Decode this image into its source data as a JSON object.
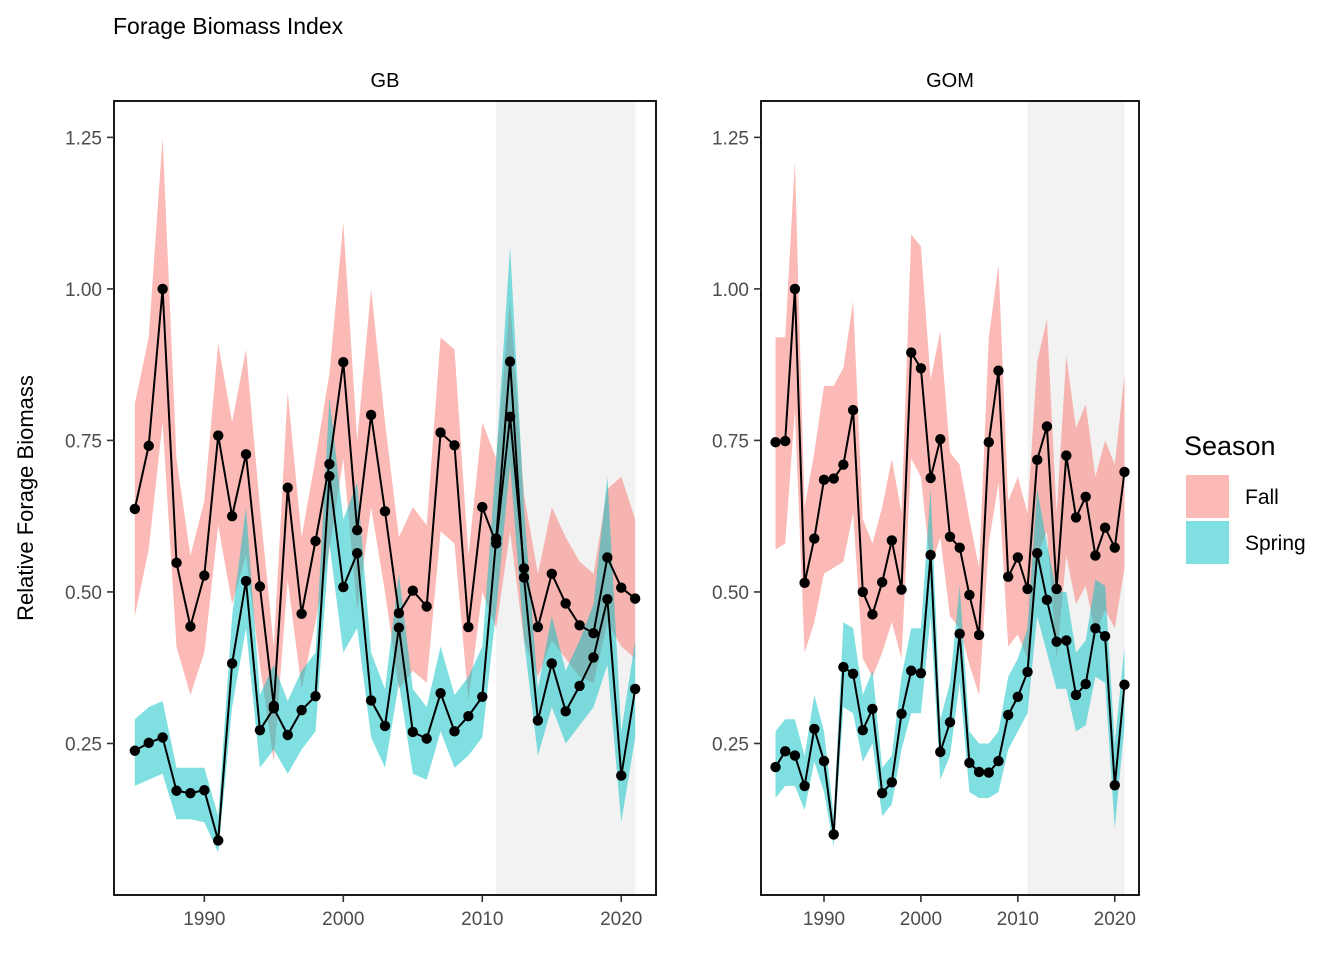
{
  "chart_data": {
    "type": "line",
    "title": "Forage Biomass Index",
    "ylabel": "Relative Forage Biomass",
    "xlabel": "",
    "legend": {
      "title": "Season",
      "placement": "right",
      "items": [
        {
          "name": "Fall",
          "color": "#f8766d"
        },
        {
          "name": "Spring",
          "color": "#00bfc4"
        }
      ]
    },
    "shaded_period": [
      2011,
      2021
    ],
    "panels": [
      {
        "name": "GB",
        "xlim": [
          1983.5,
          2022.5
        ],
        "ylim": [
          0.0,
          1.31
        ],
        "xticks": [
          1990,
          2000,
          2010,
          2020
        ],
        "yticks": [
          0.25,
          0.5,
          0.75,
          1.0,
          1.25
        ],
        "ytick_labels": [
          "0.25",
          "0.50",
          "0.75",
          "1.00",
          "1.25"
        ],
        "series": [
          {
            "name": "Fall",
            "x": [
              1985,
              1986,
              1987,
              1988,
              1989,
              1990,
              1991,
              1992,
              1993,
              1994,
              1995,
              1996,
              1997,
              1998,
              1999,
              2000,
              2001,
              2002,
              2003,
              2004,
              2005,
              2006,
              2007,
              2008,
              2009,
              2010,
              2011,
              2012,
              2013,
              2014,
              2015,
              2016,
              2017,
              2018,
              2019,
              2020,
              2021
            ],
            "y": [
              0.637,
              0.741,
              1.0,
              0.548,
              0.443,
              0.527,
              0.758,
              0.625,
              0.727,
              0.509,
              0.312,
              0.672,
              0.464,
              0.584,
              0.711,
              0.879,
              0.602,
              0.792,
              0.633,
              0.465,
              0.502,
              0.476,
              0.763,
              0.742,
              0.442,
              0.64,
              0.58,
              0.789,
              0.539,
              0.442,
              0.53,
              0.481,
              0.445,
              0.432,
              0.557,
              0.507,
              0.489
            ],
            "lower": [
              0.46,
              0.57,
              0.78,
              0.41,
              0.33,
              0.4,
              0.61,
              0.48,
              0.56,
              0.38,
              0.22,
              0.52,
              0.34,
              0.45,
              0.57,
              0.72,
              0.47,
              0.64,
              0.5,
              0.34,
              0.37,
              0.35,
              0.6,
              0.58,
              0.32,
              0.5,
              0.44,
              0.6,
              0.42,
              0.36,
              0.42,
              0.39,
              0.36,
              0.35,
              0.45,
              0.41,
              0.39
            ],
            "upper": [
              0.81,
              0.92,
              1.25,
              0.72,
              0.56,
              0.65,
              0.91,
              0.78,
              0.9,
              0.64,
              0.41,
              0.83,
              0.59,
              0.72,
              0.86,
              1.11,
              0.75,
              1.0,
              0.78,
              0.59,
              0.64,
              0.61,
              0.92,
              0.9,
              0.56,
              0.78,
              0.72,
              0.98,
              0.66,
              0.53,
              0.64,
              0.59,
              0.55,
              0.53,
              0.67,
              0.69,
              0.62
            ]
          },
          {
            "name": "Spring",
            "x": [
              1985,
              1986,
              1987,
              1988,
              1989,
              1990,
              1991,
              1992,
              1993,
              1994,
              1995,
              1996,
              1997,
              1998,
              1999,
              2000,
              2001,
              2002,
              2003,
              2004,
              2005,
              2006,
              2007,
              2008,
              2009,
              2010,
              2011,
              2012,
              2013,
              2014,
              2015,
              2016,
              2017,
              2018,
              2019,
              2020,
              2021
            ],
            "y": [
              0.238,
              0.251,
              0.26,
              0.172,
              0.168,
              0.173,
              0.09,
              0.382,
              0.518,
              0.272,
              0.308,
              0.264,
              0.305,
              0.328,
              0.691,
              0.508,
              0.564,
              0.321,
              0.279,
              0.441,
              0.269,
              0.258,
              0.333,
              0.27,
              0.295,
              0.327,
              0.588,
              0.88,
              0.524,
              0.288,
              0.382,
              0.303,
              0.345,
              0.392,
              0.488,
              0.197,
              0.34
            ],
            "lower": [
              0.18,
              0.19,
              0.2,
              0.125,
              0.125,
              0.12,
              0.07,
              0.31,
              0.44,
              0.21,
              0.24,
              0.2,
              0.24,
              0.27,
              0.58,
              0.4,
              0.44,
              0.26,
              0.21,
              0.35,
              0.2,
              0.19,
              0.27,
              0.21,
              0.23,
              0.26,
              0.47,
              0.71,
              0.42,
              0.23,
              0.31,
              0.25,
              0.28,
              0.31,
              0.38,
              0.12,
              0.26
            ],
            "upper": [
              0.29,
              0.31,
              0.32,
              0.21,
              0.21,
              0.21,
              0.13,
              0.46,
              0.64,
              0.33,
              0.38,
              0.32,
              0.37,
              0.4,
              0.82,
              0.62,
              0.68,
              0.4,
              0.34,
              0.53,
              0.34,
              0.31,
              0.41,
              0.33,
              0.36,
              0.41,
              0.72,
              1.07,
              0.64,
              0.34,
              0.46,
              0.37,
              0.42,
              0.48,
              0.69,
              0.27,
              0.42
            ]
          }
        ]
      },
      {
        "name": "GOM",
        "xlim": [
          1983.5,
          2022.5
        ],
        "ylim": [
          0.0,
          1.31
        ],
        "xticks": [
          1990,
          2000,
          2010,
          2020
        ],
        "yticks": [
          0.25,
          0.5,
          0.75,
          1.0,
          1.25
        ],
        "ytick_labels": [
          "0.25",
          "0.50",
          "0.75",
          "1.00",
          "1.25"
        ],
        "series": [
          {
            "name": "Fall",
            "x": [
              1985,
              1986,
              1987,
              1988,
              1989,
              1990,
              1991,
              1992,
              1993,
              1994,
              1995,
              1996,
              1997,
              1998,
              1999,
              2000,
              2001,
              2002,
              2003,
              2004,
              2005,
              2006,
              2007,
              2008,
              2009,
              2010,
              2011,
              2012,
              2013,
              2014,
              2015,
              2016,
              2017,
              2018,
              2019,
              2020,
              2021
            ],
            "y": [
              0.747,
              0.749,
              1.0,
              0.515,
              0.588,
              0.685,
              0.687,
              0.71,
              0.8,
              0.5,
              0.463,
              0.516,
              0.585,
              0.504,
              0.895,
              0.869,
              0.688,
              0.752,
              0.591,
              0.573,
              0.495,
              0.429,
              0.747,
              0.865,
              0.525,
              0.557,
              0.505,
              0.718,
              0.773,
              0.505,
              0.725,
              0.623,
              0.657,
              0.56,
              0.606,
              0.573,
              0.698
            ],
            "lower": [
              0.57,
              0.58,
              0.8,
              0.4,
              0.45,
              0.53,
              0.54,
              0.55,
              0.63,
              0.39,
              0.36,
              0.4,
              0.45,
              0.39,
              0.72,
              0.69,
              0.54,
              0.59,
              0.46,
              0.44,
              0.38,
              0.33,
              0.58,
              0.68,
              0.41,
              0.43,
              0.39,
              0.56,
              0.6,
              0.39,
              0.56,
              0.48,
              0.51,
              0.43,
              0.47,
              0.44,
              0.54
            ],
            "upper": [
              0.92,
              0.92,
              1.21,
              0.64,
              0.73,
              0.84,
              0.84,
              0.87,
              0.98,
              0.62,
              0.58,
              0.64,
              0.72,
              0.63,
              1.09,
              1.07,
              0.85,
              0.93,
              0.73,
              0.71,
              0.62,
              0.54,
              0.92,
              1.04,
              0.65,
              0.69,
              0.63,
              0.88,
              0.95,
              0.63,
              0.89,
              0.77,
              0.81,
              0.69,
              0.75,
              0.71,
              0.86
            ]
          },
          {
            "name": "Spring",
            "x": [
              1985,
              1986,
              1987,
              1988,
              1989,
              1990,
              1991,
              1992,
              1993,
              1994,
              1995,
              1996,
              1997,
              1998,
              1999,
              2000,
              2001,
              2002,
              2003,
              2004,
              2005,
              2006,
              2007,
              2008,
              2009,
              2010,
              2011,
              2012,
              2013,
              2014,
              2015,
              2016,
              2017,
              2018,
              2019,
              2020,
              2021
            ],
            "y": [
              0.211,
              0.237,
              0.23,
              0.18,
              0.274,
              0.221,
              0.1,
              0.376,
              0.365,
              0.272,
              0.307,
              0.168,
              0.186,
              0.299,
              0.37,
              0.366,
              0.561,
              0.236,
              0.285,
              0.431,
              0.218,
              0.203,
              0.202,
              0.221,
              0.297,
              0.327,
              0.368,
              0.564,
              0.487,
              0.418,
              0.42,
              0.33,
              0.348,
              0.44,
              0.427,
              0.181,
              0.347
            ],
            "lower": [
              0.16,
              0.18,
              0.18,
              0.14,
              0.22,
              0.17,
              0.08,
              0.31,
              0.3,
              0.22,
              0.25,
              0.13,
              0.15,
              0.24,
              0.3,
              0.3,
              0.46,
              0.19,
              0.23,
              0.35,
              0.17,
              0.16,
              0.16,
              0.17,
              0.24,
              0.27,
              0.3,
              0.46,
              0.4,
              0.34,
              0.34,
              0.27,
              0.28,
              0.36,
              0.35,
              0.11,
              0.28
            ],
            "upper": [
              0.27,
              0.29,
              0.29,
              0.23,
              0.33,
              0.27,
              0.13,
              0.45,
              0.44,
              0.33,
              0.37,
              0.21,
              0.23,
              0.36,
              0.44,
              0.44,
              0.67,
              0.29,
              0.35,
              0.51,
              0.27,
              0.25,
              0.25,
              0.27,
              0.36,
              0.39,
              0.44,
              0.67,
              0.58,
              0.5,
              0.5,
              0.4,
              0.42,
              0.52,
              0.51,
              0.25,
              0.41
            ]
          }
        ]
      }
    ]
  }
}
